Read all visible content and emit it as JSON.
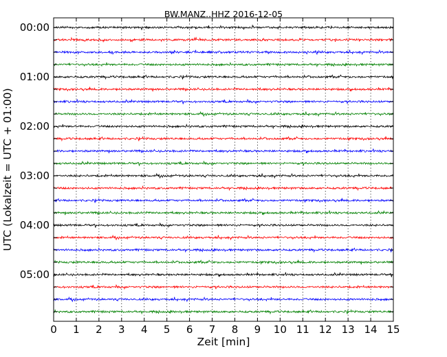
{
  "chart_data": {
    "type": "line",
    "title": "BW.MANZ..HHZ 2016-12-05",
    "xlabel": "Zeit  [min]",
    "ylabel": "UTC (Lokalzeit = UTC + 01:00)",
    "xlim": [
      0,
      15
    ],
    "x_ticks": [
      "0",
      "1",
      "2",
      "3",
      "4",
      "5",
      "6",
      "7",
      "8",
      "9",
      "10",
      "11",
      "12",
      "13",
      "14",
      "15"
    ],
    "y_tick_labels": [
      "00:00",
      "01:00",
      "02:00",
      "03:00",
      "04:00",
      "05:00"
    ],
    "grid": "vertical dotted lines at each minute",
    "trace_interval_minutes": 15,
    "trace_colors": [
      "#000000",
      "#ff0000",
      "#0000ff",
      "#008000"
    ],
    "traces": [
      {
        "start": "00:00",
        "color": "#000000"
      },
      {
        "start": "00:15",
        "color": "#ff0000"
      },
      {
        "start": "00:30",
        "color": "#0000ff"
      },
      {
        "start": "00:45",
        "color": "#008000"
      },
      {
        "start": "01:00",
        "color": "#000000"
      },
      {
        "start": "01:15",
        "color": "#ff0000"
      },
      {
        "start": "01:30",
        "color": "#0000ff"
      },
      {
        "start": "01:45",
        "color": "#008000"
      },
      {
        "start": "02:00",
        "color": "#000000"
      },
      {
        "start": "02:15",
        "color": "#ff0000"
      },
      {
        "start": "02:30",
        "color": "#0000ff"
      },
      {
        "start": "02:45",
        "color": "#008000"
      },
      {
        "start": "03:00",
        "color": "#000000"
      },
      {
        "start": "03:15",
        "color": "#ff0000"
      },
      {
        "start": "03:30",
        "color": "#0000ff"
      },
      {
        "start": "03:45",
        "color": "#008000"
      },
      {
        "start": "04:00",
        "color": "#000000"
      },
      {
        "start": "04:15",
        "color": "#ff0000"
      },
      {
        "start": "04:30",
        "color": "#0000ff"
      },
      {
        "start": "04:45",
        "color": "#008000"
      },
      {
        "start": "05:00",
        "color": "#000000"
      },
      {
        "start": "05:15",
        "color": "#ff0000"
      },
      {
        "start": "05:30",
        "color": "#0000ff"
      },
      {
        "start": "05:45",
        "color": "#008000"
      }
    ]
  }
}
